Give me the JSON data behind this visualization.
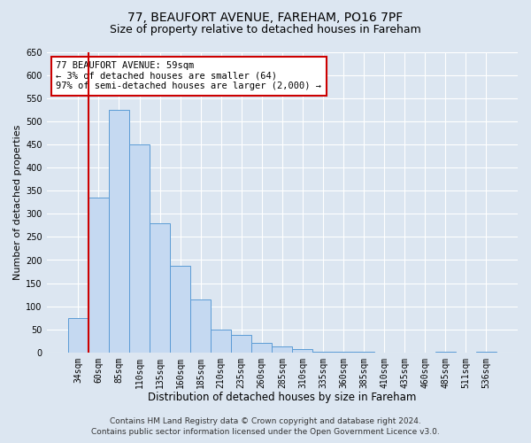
{
  "title": "77, BEAUFORT AVENUE, FAREHAM, PO16 7PF",
  "subtitle": "Size of property relative to detached houses in Fareham",
  "xlabel": "Distribution of detached houses by size in Fareham",
  "ylabel": "Number of detached properties",
  "bin_labels": [
    "34sqm",
    "60sqm",
    "85sqm",
    "110sqm",
    "135sqm",
    "160sqm",
    "185sqm",
    "210sqm",
    "235sqm",
    "260sqm",
    "285sqm",
    "310sqm",
    "335sqm",
    "360sqm",
    "385sqm",
    "410sqm",
    "435sqm",
    "460sqm",
    "485sqm",
    "511sqm",
    "536sqm"
  ],
  "bar_values": [
    75,
    335,
    525,
    450,
    280,
    188,
    115,
    50,
    37,
    20,
    13,
    7,
    2,
    1,
    1,
    0,
    0,
    0,
    1,
    0,
    2
  ],
  "bar_color": "#c5d9f1",
  "bar_edge_color": "#5b9bd5",
  "vline_color": "#cc0000",
  "annotation_text": "77 BEAUFORT AVENUE: 59sqm\n← 3% of detached houses are smaller (64)\n97% of semi-detached houses are larger (2,000) →",
  "annotation_box_color": "#ffffff",
  "annotation_box_edge": "#cc0000",
  "ylim": [
    0,
    650
  ],
  "yticks": [
    0,
    50,
    100,
    150,
    200,
    250,
    300,
    350,
    400,
    450,
    500,
    550,
    600,
    650
  ],
  "footer_line1": "Contains HM Land Registry data © Crown copyright and database right 2024.",
  "footer_line2": "Contains public sector information licensed under the Open Government Licence v3.0.",
  "bg_color": "#dce6f1",
  "plot_bg_color": "#dce6f1",
  "title_fontsize": 10,
  "subtitle_fontsize": 9,
  "xlabel_fontsize": 8.5,
  "ylabel_fontsize": 8,
  "tick_fontsize": 7,
  "annotation_fontsize": 7.5,
  "footer_fontsize": 6.5
}
